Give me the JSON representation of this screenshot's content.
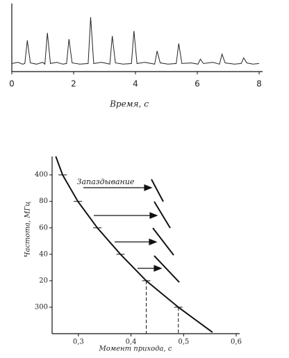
{
  "chart_data": [
    {
      "type": "line",
      "xlabel": "Время, с",
      "xlim": [
        0,
        8
      ],
      "xticks": [
        0,
        2,
        4,
        6,
        8
      ],
      "ylim": [
        0,
        1
      ],
      "color": "#222",
      "x": [
        0,
        0.2,
        0.35,
        0.42,
        0.5,
        0.6,
        0.8,
        1.0,
        1.07,
        1.15,
        1.25,
        1.45,
        1.65,
        1.77,
        1.85,
        1.95,
        2.2,
        2.47,
        2.55,
        2.65,
        2.9,
        3.17,
        3.25,
        3.35,
        3.6,
        3.87,
        3.95,
        4.05,
        4.3,
        4.62,
        4.7,
        4.8,
        5.05,
        5.32,
        5.4,
        5.5,
        5.8,
        6.02,
        6.1,
        6.2,
        6.5,
        6.72,
        6.8,
        6.9,
        7.2,
        7.42,
        7.5,
        7.6,
        7.8,
        8.0
      ],
      "values": [
        0.04,
        0.06,
        0.03,
        0.04,
        0.41,
        0.05,
        0.03,
        0.06,
        0.03,
        0.53,
        0.04,
        0.06,
        0.03,
        0.04,
        0.43,
        0.05,
        0.03,
        0.04,
        0.78,
        0.04,
        0.06,
        0.03,
        0.48,
        0.05,
        0.03,
        0.04,
        0.56,
        0.04,
        0.06,
        0.03,
        0.24,
        0.05,
        0.03,
        0.04,
        0.36,
        0.04,
        0.05,
        0.03,
        0.11,
        0.04,
        0.06,
        0.03,
        0.19,
        0.05,
        0.03,
        0.04,
        0.13,
        0.05,
        0.03,
        0.04
      ]
    },
    {
      "type": "line",
      "xlabel": "Момент прихода, с",
      "ylabel": "Частота, МГц",
      "annotation": "Запаздывание",
      "xlim": [
        0.25,
        0.6
      ],
      "xticks": [
        {
          "value": 0.3,
          "label": "0,3"
        },
        {
          "value": 0.4,
          "label": "0,4"
        },
        {
          "value": 0.5,
          "label": "0,5"
        },
        {
          "value": 0.6,
          "label": "0,6"
        }
      ],
      "ylim": [
        -1,
        5.7
      ],
      "yticks": [
        {
          "value": 0,
          "label": "300"
        },
        {
          "value": 1,
          "label": "20"
        },
        {
          "value": 2,
          "label": "40"
        },
        {
          "value": 3,
          "label": "60"
        },
        {
          "value": 4,
          "label": "80"
        },
        {
          "value": 5,
          "label": "400"
        }
      ],
      "color": "#111",
      "x": [
        0.257,
        0.27,
        0.299,
        0.336,
        0.38,
        0.429,
        0.49,
        0.555
      ],
      "values": [
        5.7,
        5,
        4,
        3,
        2,
        1,
        0,
        -0.95
      ]
    }
  ]
}
